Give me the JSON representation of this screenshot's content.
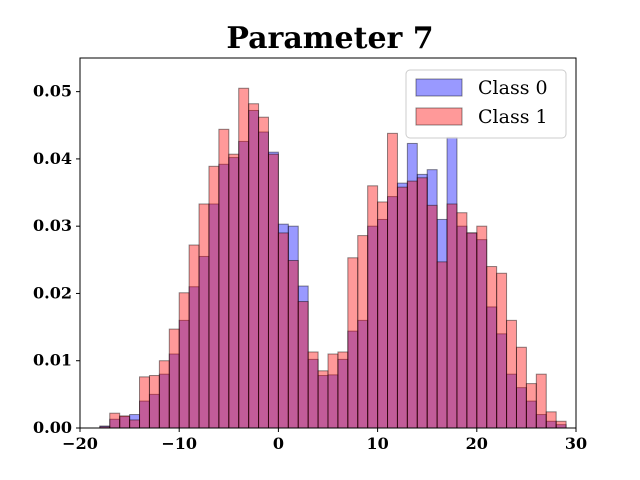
{
  "chart_data": {
    "type": "histogram",
    "title": "Parameter 7",
    "xlabel": "",
    "ylabel": "",
    "xlim": [
      -20,
      30
    ],
    "ylim": [
      0,
      0.055
    ],
    "xticks": [
      -20,
      -10,
      0,
      10,
      20,
      30
    ],
    "xtick_labels": [
      "−20",
      "−10",
      "0",
      "10",
      "20",
      "30"
    ],
    "yticks": [
      0,
      0.01,
      0.02,
      0.03,
      0.04,
      0.05
    ],
    "ytick_labels": [
      "0.00",
      "0.01",
      "0.02",
      "0.03",
      "0.04",
      "0.05"
    ],
    "grid": false,
    "legend_position": "top-right",
    "series": [
      {
        "name": "Class 0",
        "color": "#0000ff",
        "alpha": 0.4,
        "bin_start": -18,
        "bin_width": 1,
        "values": [
          0.0003,
          0.0013,
          0.0017,
          0.002,
          0.004,
          0.005,
          0.008,
          0.011,
          0.016,
          0.021,
          0.0255,
          0.0333,
          0.0392,
          0.0402,
          0.0426,
          0.0472,
          0.044,
          0.041,
          0.0303,
          0.03,
          0.0211,
          0.0102,
          0.0078,
          0.0079,
          0.0102,
          0.0144,
          0.016,
          0.03,
          0.031,
          0.0344,
          0.0364,
          0.0423,
          0.0377,
          0.0384,
          0.031,
          0.0432,
          0.03,
          0.029,
          0.028,
          0.018,
          0.014,
          0.008,
          0.006,
          0.004,
          0.002,
          0.001,
          0.0005
        ]
      },
      {
        "name": "Class 1",
        "color": "#ff0000",
        "alpha": 0.4,
        "bin_start": -18,
        "bin_width": 1,
        "values": [
          0.0002,
          0.0022,
          0.0018,
          0.0012,
          0.0076,
          0.0078,
          0.01,
          0.0147,
          0.0201,
          0.0272,
          0.0333,
          0.0389,
          0.0444,
          0.0407,
          0.0505,
          0.0482,
          0.0462,
          0.0407,
          0.029,
          0.0249,
          0.0188,
          0.0113,
          0.0085,
          0.011,
          0.0113,
          0.0253,
          0.0286,
          0.036,
          0.0336,
          0.0438,
          0.0358,
          0.0367,
          0.0372,
          0.0331,
          0.0247,
          0.0333,
          0.032,
          0.029,
          0.03,
          0.024,
          0.023,
          0.016,
          0.012,
          0.0066,
          0.008,
          0.0024,
          0.001
        ]
      }
    ]
  }
}
